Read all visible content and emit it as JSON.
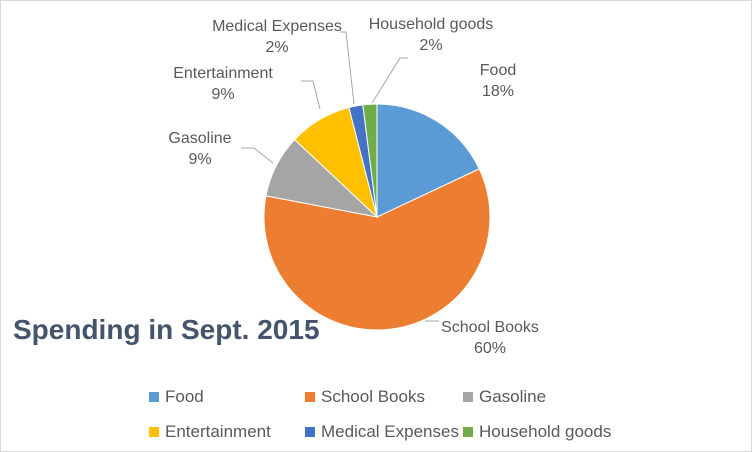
{
  "chart_data": {
    "type": "pie",
    "title": "Spending in Sept. 2015",
    "categories": [
      "Food",
      "School Books",
      "Gasoline",
      "Entertainment",
      "Medical Expenses",
      "Household goods"
    ],
    "values": [
      18,
      60,
      9,
      9,
      2,
      2
    ],
    "percent_labels": [
      "18%",
      "60%",
      "9%",
      "9%",
      "2%",
      "2%"
    ],
    "colors": [
      "#5b9bd5",
      "#ed7d31",
      "#a5a5a5",
      "#ffc000",
      "#4472c4",
      "#70ad47"
    ],
    "legend_position": "bottom"
  }
}
